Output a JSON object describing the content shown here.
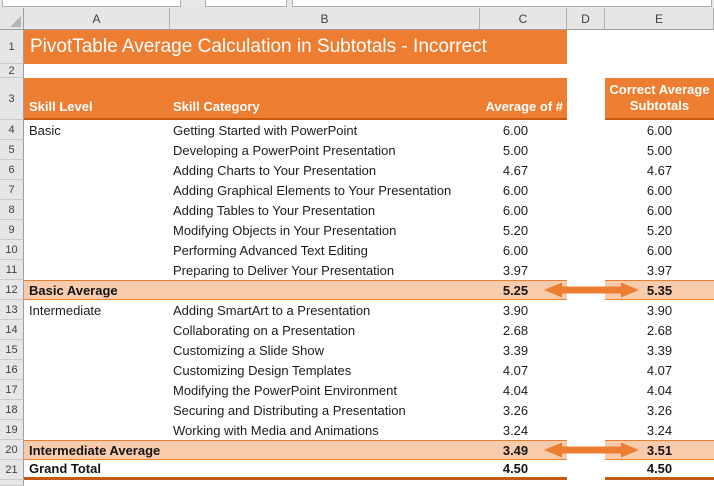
{
  "colors": {
    "accent": "#ED7D31",
    "accent_dark": "#C55A11",
    "band": "#F8CBAD"
  },
  "columns": {
    "a": "A",
    "b": "B",
    "c": "C",
    "d": "D",
    "e": "E"
  },
  "title_row": {
    "num": "1",
    "text": "PivotTable Average Calculation in Subtotals - Incorrect"
  },
  "empty_row": {
    "num": "2"
  },
  "header_row": {
    "num": "3",
    "skill_level": "Skill Level",
    "skill_category": "Skill Category",
    "average_of": "Average of #",
    "correct_line1": "Correct Average",
    "correct_line2": "Subtotals"
  },
  "data_rows": [
    {
      "num": "4",
      "kind": "data",
      "level": "Basic",
      "category": "Getting Started with PowerPoint",
      "avg": "6.00",
      "correct": "6.00"
    },
    {
      "num": "5",
      "kind": "data",
      "level": "",
      "category": "Developing a PowerPoint Presentation",
      "avg": "5.00",
      "correct": "5.00"
    },
    {
      "num": "6",
      "kind": "data",
      "level": "",
      "category": "Adding Charts to Your Presentation",
      "avg": "4.67",
      "correct": "4.67"
    },
    {
      "num": "7",
      "kind": "data",
      "level": "",
      "category": "Adding Graphical Elements to Your Presentation",
      "avg": "6.00",
      "correct": "6.00"
    },
    {
      "num": "8",
      "kind": "data",
      "level": "",
      "category": "Adding Tables to Your Presentation",
      "avg": "6.00",
      "correct": "6.00"
    },
    {
      "num": "9",
      "kind": "data",
      "level": "",
      "category": "Modifying Objects in Your Presentation",
      "avg": "5.20",
      "correct": "5.20"
    },
    {
      "num": "10",
      "kind": "data",
      "level": "",
      "category": "Performing Advanced Text Editing",
      "avg": "6.00",
      "correct": "6.00"
    },
    {
      "num": "11",
      "kind": "data",
      "level": "",
      "category": "Preparing to Deliver Your Presentation",
      "avg": "3.97",
      "correct": "3.97"
    },
    {
      "num": "12",
      "kind": "subtotal",
      "label": "Basic Average",
      "avg": "5.25",
      "correct": "5.35"
    },
    {
      "num": "13",
      "kind": "data",
      "level": "Intermediate",
      "category": "Adding SmartArt to a Presentation",
      "avg": "3.90",
      "correct": "3.90"
    },
    {
      "num": "14",
      "kind": "data",
      "level": "",
      "category": "Collaborating on a Presentation",
      "avg": "2.68",
      "correct": "2.68"
    },
    {
      "num": "15",
      "kind": "data",
      "level": "",
      "category": "Customizing a Slide Show",
      "avg": "3.39",
      "correct": "3.39"
    },
    {
      "num": "16",
      "kind": "data",
      "level": "",
      "category": "Customizing Design Templates",
      "avg": "4.07",
      "correct": "4.07"
    },
    {
      "num": "17",
      "kind": "data",
      "level": "",
      "category": "Modifying the PowerPoint Environment",
      "avg": "4.04",
      "correct": "4.04"
    },
    {
      "num": "18",
      "kind": "data",
      "level": "",
      "category": "Securing and Distributing a Presentation",
      "avg": "3.26",
      "correct": "3.26"
    },
    {
      "num": "19",
      "kind": "data",
      "level": "",
      "category": "Working with Media and Animations",
      "avg": "3.24",
      "correct": "3.24"
    },
    {
      "num": "20",
      "kind": "subtotal",
      "label": "Intermediate Average",
      "avg": "3.49",
      "correct": "3.51"
    },
    {
      "num": "21",
      "kind": "grand",
      "label": "Grand Total",
      "avg": "4.50",
      "correct": "4.50"
    }
  ]
}
